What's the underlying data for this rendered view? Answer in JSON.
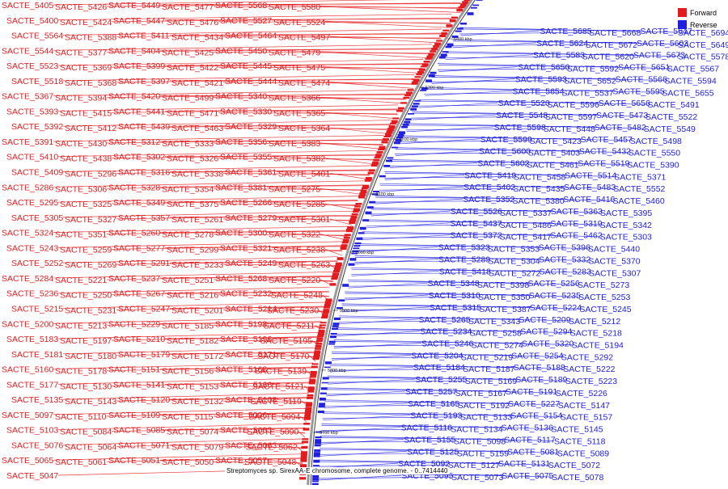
{
  "caption": "Streptomyces sp. SirexAA-E chromosome, complete genome. - 0..7414440",
  "legend": [
    {
      "label": "Forward",
      "color": "#e41a1c"
    },
    {
      "label": "Reverse",
      "color": "#1f1fe0"
    }
  ],
  "colors": {
    "forward": "#e41a1c",
    "reverse": "#2020e0",
    "backbone": "#888888"
  },
  "ticks": [
    "6400 kbp",
    "6300 kbp",
    "6200 kbp",
    "6100 kbp",
    "6000 kbp",
    "5900 kbp",
    "5800 kbp",
    "5700 kbp"
  ],
  "forward_labels": [
    "SACTE_5405",
    "SACTE_5426",
    "SACTE_5449",
    "SACTE_5477",
    "SACTE_5568",
    "SACTE_5580",
    "SACTE_5400",
    "SACTE_5424",
    "SACTE_5447",
    "SACTE_5476",
    "SACTE_5527",
    "SACTE_5524",
    "SACTE_5564",
    "SACTE_5388",
    "SACTE_5411",
    "SACTE_5434",
    "SACTE_5464",
    "SACTE_5497",
    "SACTE_5544",
    "SACTE_5377",
    "SACTE_5404",
    "SACTE_5425",
    "SACTE_5450",
    "SACTE_5479",
    "SACTE_5523",
    "SACTE_5369",
    "SACTE_5399",
    "SACTE_5422",
    "SACTE_5445",
    "SACTE_5475",
    "SACTE_5518",
    "SACTE_5368",
    "SACTE_5397",
    "SACTE_5421",
    "SACTE_5444",
    "SACTE_5474",
    "SACTE_5367",
    "SACTE_5394",
    "SACTE_5420",
    "SACTE_5499",
    "SACTE_5340",
    "SACTE_5366",
    "SACTE_5393",
    "SACTE_5415",
    "SACTE_5441",
    "SACTE_5471",
    "SACTE_5330",
    "SACTE_5365",
    "SACTE_5392",
    "SACTE_5412",
    "SACTE_5439",
    "SACTE_5463",
    "SACTE_5329",
    "SACTE_5364",
    "SACTE_5391",
    "SACTE_5430",
    "SACTE_5312",
    "SACTE_5333",
    "SACTE_5356",
    "SACTE_5383",
    "SACTE_5410",
    "SACTE_5438",
    "SACTE_5302",
    "SACTE_5326",
    "SACTE_5355",
    "SACTE_5382",
    "SACTE_5409",
    "SACTE_5296",
    "SACTE_5316",
    "SACTE_5338",
    "SACTE_5361",
    "SACTE_5401",
    "SACTE_5286",
    "SACTE_5306",
    "SACTE_5328",
    "SACTE_5354",
    "SACTE_5381",
    "SACTE_5275",
    "SACTE_5295",
    "SACTE_5325",
    "SACTE_5349",
    "SACTE_5375",
    "SACTE_5266",
    "SACTE_5285",
    "SACTE_5305",
    "SACTE_5327",
    "SACTE_5357",
    "SACTE_5261",
    "SACTE_5279",
    "SACTE_5301",
    "SACTE_5324",
    "SACTE_5351",
    "SACTE_5260",
    "SACTE_5278",
    "SACTE_5300",
    "SACTE_5322",
    "SACTE_5243",
    "SACTE_5259",
    "SACTE_5277",
    "SACTE_5299",
    "SACTE_5321",
    "SACTE_5238",
    "SACTE_5252",
    "SACTE_5269",
    "SACTE_5291",
    "SACTE_5233",
    "SACTE_5249",
    "SACTE_5263",
    "SACTE_5284",
    "SACTE_5221",
    "SACTE_5237",
    "SACTE_5251",
    "SACTE_5268",
    "SACTE_5220",
    "SACTE_5236",
    "SACTE_5250",
    "SACTE_5267",
    "SACTE_5216",
    "SACTE_5232",
    "SACTE_5248",
    "SACTE_5215",
    "SACTE_5231",
    "SACTE_5247",
    "SACTE_5201",
    "SACTE_5214",
    "SACTE_5230",
    "SACTE_5200",
    "SACTE_5213",
    "SACTE_5229",
    "SACTE_5185",
    "SACTE_5198",
    "SACTE_5211",
    "SACTE_5183",
    "SACTE_5197",
    "SACTE_5210",
    "SACTE_5182",
    "SACTE_5196",
    "SACTE_5195",
    "SACTE_5181",
    "SACTE_5180",
    "SACTE_5179",
    "SACTE_5172",
    "SACTE_5171",
    "SACTE_5170",
    "SACTE_5160",
    "SACTE_5178",
    "SACTE_5151",
    "SACTE_5156",
    "SACTE_5168",
    "SACTE_5139",
    "SACTE_5177",
    "SACTE_5130",
    "SACTE_5141",
    "SACTE_5153",
    "SACTE_5166",
    "SACTE_5121",
    "SACTE_5135",
    "SACTE_5143",
    "SACTE_5120",
    "SACTE_5132",
    "SACTE_5108",
    "SACTE_5119",
    "SACTE_5097",
    "SACTE_5110",
    "SACTE_5109",
    "SACTE_5115",
    "SACTE_5096",
    "SACTE_5094",
    "SACTE_5103",
    "SACTE_5084",
    "SACTE_5085",
    "SACTE_5074",
    "SACTE_5083",
    "SACTE_5090",
    "SACTE_5076",
    "SACTE_5064",
    "SACTE_5071",
    "SACTE_5079",
    "SACTE_5063",
    "SACTE_5062",
    "SACTE_5065",
    "SACTE_5061",
    "SACTE_5051",
    "SACTE_5050",
    "SACTE_5057",
    "SACTE_5048",
    "SACTE_5047"
  ],
  "reverse_labels": [
    "SACTE_5685",
    "SACTE_5668",
    "SACTE_5647",
    "SACTE_5694",
    "SACTE_5624",
    "SACTE_5672",
    "SACTE_5603",
    "SACTE_5649",
    "SACTE_5583",
    "SACTE_5620",
    "SACTE_5673",
    "SACTE_5578",
    "SACTE_5650",
    "SACTE_5592",
    "SACTE_5651",
    "SACTE_5567",
    "SACTE_5593",
    "SACTE_5652",
    "SACTE_5566",
    "SACTE_5594",
    "SACTE_5654",
    "SACTE_5537",
    "SACTE_5595",
    "SACTE_5655",
    "SACTE_5520",
    "SACTE_5596",
    "SACTE_5656",
    "SACTE_5491",
    "SACTE_5548",
    "SACTE_5597",
    "SACTE_5473",
    "SACTE_5522",
    "SACTE_5598",
    "SACTE_5448",
    "SACTE_5482",
    "SACTE_5549",
    "SACTE_5599",
    "SACTE_5423",
    "SACTE_5457",
    "SACTE_5498",
    "SACTE_5600",
    "SACTE_5403",
    "SACTE_5432",
    "SACTE_5550",
    "SACTE_5602",
    "SACTE_5461",
    "SACTE_5519",
    "SACTE_5390",
    "SACTE_5419",
    "SACTE_5458",
    "SACTE_5514",
    "SACTE_5371",
    "SACTE_5402",
    "SACTE_5435",
    "SACTE_5483",
    "SACTE_5552",
    "SACTE_5352",
    "SACTE_5380",
    "SACTE_5416",
    "SACTE_5460",
    "SACTE_5526",
    "SACTE_5337",
    "SACTE_5363",
    "SACTE_5395",
    "SACTE_5437",
    "SACTE_5486",
    "SACTE_5319",
    "SACTE_5342",
    "SACTE_5372",
    "SACTE_5417",
    "SACTE_5462",
    "SACTE_5303",
    "SACTE_5323",
    "SACTE_5353",
    "SACTE_5396",
    "SACTE_5440",
    "SACTE_5289",
    "SACTE_5304",
    "SACTE_5332",
    "SACTE_5370",
    "SACTE_5418",
    "SACTE_5272",
    "SACTE_5283",
    "SACTE_5307",
    "SACTE_5348",
    "SACTE_5398",
    "SACTE_5256",
    "SACTE_5273",
    "SACTE_5310",
    "SACTE_5350",
    "SACTE_5235",
    "SACTE_5253",
    "SACTE_5315",
    "SACTE_5387",
    "SACTE_5224",
    "SACTE_5245",
    "SACTE_5265",
    "SACTE_5343",
    "SACTE_5209",
    "SACTE_5212",
    "SACTE_5234",
    "SACTE_5258",
    "SACTE_5294",
    "SACTE_5218",
    "SACTE_5246",
    "SACTE_5274",
    "SACTE_5320",
    "SACTE_5194",
    "SACTE_5204",
    "SACTE_5219",
    "SACTE_5254",
    "SACTE_5292",
    "SACTE_5184",
    "SACTE_5187",
    "SACTE_5188",
    "SACTE_5222",
    "SACTE_5255",
    "SACTE_5169",
    "SACTE_5189",
    "SACTE_5223",
    "SACTE_5257",
    "SACTE_5167",
    "SACTE_5191",
    "SACTE_5226",
    "SACTE_5165",
    "SACTE_5192",
    "SACTE_5227",
    "SACTE_5147",
    "SACTE_5193",
    "SACTE_5133",
    "SACTE_5154",
    "SACTE_5157",
    "SACTE_5116",
    "SACTE_5134",
    "SACTE_5136",
    "SACTE_5145",
    "SACTE_5155",
    "SACTE_5098",
    "SACTE_5117",
    "SACTE_5118",
    "SACTE_5125",
    "SACTE_5159",
    "SACTE_5081",
    "SACTE_5089",
    "SACTE_5092",
    "SACTE_5127",
    "SACTE_5131",
    "SACTE_5072",
    "SACTE_5095",
    "SACTE_5073",
    "SACTE_5075",
    "SACTE_5078"
  ]
}
